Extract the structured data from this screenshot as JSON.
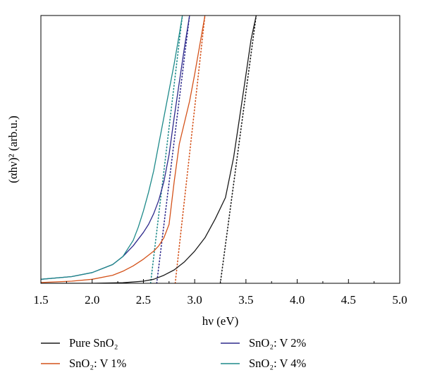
{
  "chart_data": {
    "type": "line",
    "title": "",
    "xlabel": "hν (eV)",
    "ylabel": "(αhν)² (arb.u.)",
    "xlim": [
      1.5,
      5.0
    ],
    "ylim": [
      0,
      100
    ],
    "xticks": [
      "1.5",
      "2.0",
      "2.5",
      "3.0",
      "3.5",
      "4.0",
      "4.5",
      "5.0"
    ],
    "xtick_values": [
      1.5,
      2.0,
      2.5,
      3.0,
      3.5,
      4.0,
      4.5,
      5.0
    ],
    "yticks_shown": false,
    "legend_position": "bottom",
    "series": [
      {
        "name": "Pure SnO₂",
        "color": "#1a1a1a",
        "x": [
          1.5,
          2.0,
          2.3,
          2.5,
          2.6,
          2.7,
          2.8,
          2.9,
          3.0,
          3.1,
          3.2,
          3.3,
          3.38,
          3.45,
          3.5,
          3.55,
          3.6
        ],
        "y": [
          0,
          0,
          0.2,
          0.8,
          1.5,
          3,
          5,
          8,
          12,
          17,
          24,
          32,
          47,
          65,
          78,
          91,
          100
        ]
      },
      {
        "name": "SnO₂: V 1%",
        "color": "#d4521a",
        "x": [
          1.5,
          1.8,
          2.0,
          2.2,
          2.3,
          2.4,
          2.5,
          2.6,
          2.65,
          2.7,
          2.75,
          2.8,
          2.85,
          2.9,
          2.95,
          3.0,
          3.05,
          3.1
        ],
        "y": [
          0.3,
          0.8,
          1.5,
          3,
          4.5,
          6.5,
          9,
          12,
          14,
          17,
          22,
          38,
          52,
          60,
          68,
          78,
          89,
          100
        ]
      },
      {
        "name": "SnO₂: V 2%",
        "color": "#2e2a8c",
        "x": [
          1.5,
          1.8,
          2.0,
          2.2,
          2.3,
          2.4,
          2.5,
          2.55,
          2.6,
          2.65,
          2.7,
          2.75,
          2.8,
          2.85,
          2.9,
          2.95
        ],
        "y": [
          1.5,
          2.5,
          4,
          7,
          10,
          14,
          19,
          22,
          26,
          31,
          38,
          48,
          62,
          75,
          88,
          100
        ]
      },
      {
        "name": "SnO₂: V 4%",
        "color": "#1e8a8a",
        "x": [
          1.5,
          1.8,
          2.0,
          2.2,
          2.3,
          2.4,
          2.45,
          2.5,
          2.55,
          2.6,
          2.65,
          2.7,
          2.75,
          2.8,
          2.85,
          2.88
        ],
        "y": [
          1.5,
          2.5,
          4,
          7,
          10,
          16,
          21,
          27,
          34,
          42,
          52,
          62,
          72,
          82,
          93,
          100
        ]
      }
    ],
    "tangent_lines": [
      {
        "series": "Pure SnO₂",
        "color": "#1a1a1a",
        "x0": 3.25,
        "x1": 3.6
      },
      {
        "series": "SnO₂: V 1%",
        "color": "#d4521a",
        "x0": 2.81,
        "x1": 3.1
      },
      {
        "series": "SnO₂: V 2%",
        "color": "#2e2a8c",
        "x0": 2.63,
        "x1": 2.95
      },
      {
        "series": "SnO₂: V 4%",
        "color": "#1e8a8a",
        "x0": 2.57,
        "x1": 2.88
      }
    ]
  }
}
